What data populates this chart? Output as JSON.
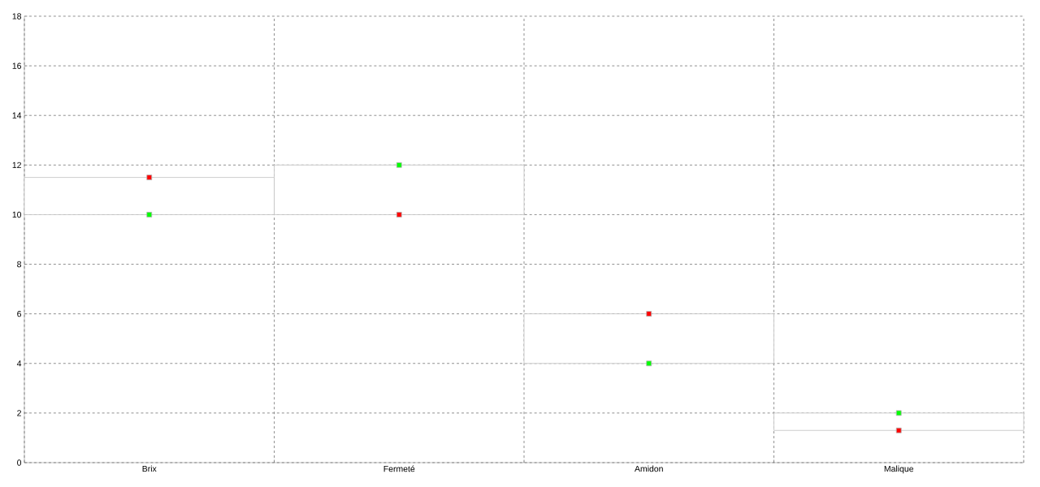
{
  "chart_data": {
    "type": "bar",
    "categories": [
      "Brix",
      "Fermeté",
      "Amidon",
      "Malique"
    ],
    "series": [
      {
        "color": "#c0c0c0",
        "base": [
          10,
          10,
          4,
          1.3
        ],
        "values": [
          1.5,
          2,
          2,
          0.7
        ]
      },
      {
        "type": "scatter",
        "color": "#ff0000",
        "x": [
          "Brix",
          "Fermeté",
          "Amidon",
          "Malique"
        ],
        "values": [
          11.5,
          10,
          6,
          1.3
        ]
      },
      {
        "type": "scatter",
        "color": "#00ff00",
        "x": [
          "Brix",
          "Fermeté",
          "Amidon",
          "Malique"
        ],
        "values": [
          10,
          12,
          4,
          2
        ]
      }
    ],
    "ylim": [
      0,
      18
    ],
    "yticks": [
      0,
      2,
      4,
      6,
      8,
      10,
      12,
      14,
      16,
      18
    ],
    "grid": true,
    "marker": "square"
  }
}
